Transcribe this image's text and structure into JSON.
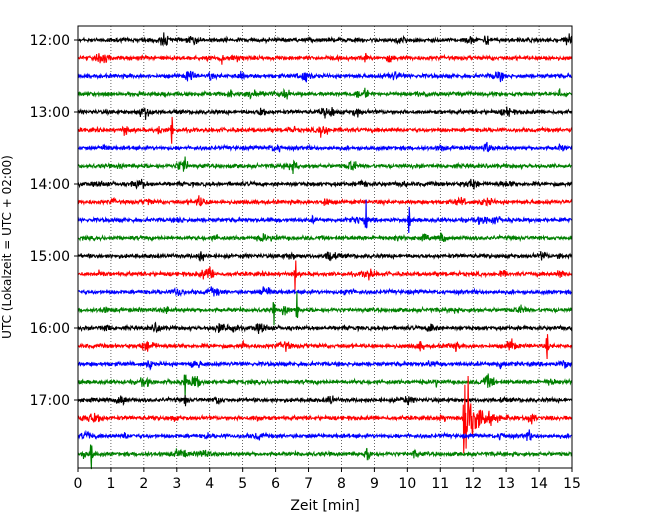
{
  "chart_data": {
    "type": "line",
    "title": "",
    "xlabel": "Zeit  [min]",
    "ylabel": "UTC (Lokalzeit = UTC + 02:00)",
    "xlim": [
      0,
      15
    ],
    "x_ticks": [
      "0",
      "1",
      "2",
      "3",
      "4",
      "5",
      "6",
      "7",
      "8",
      "9",
      "10",
      "11",
      "12",
      "13",
      "14",
      "15"
    ],
    "y_ticks": [
      "12:00",
      "13:00",
      "14:00",
      "15:00",
      "16:00",
      "17:00"
    ],
    "trace_start": "12:00",
    "trace_interval_min": 15,
    "trace_count": 24,
    "grid": "vertical-dotted",
    "legend": "none",
    "series_colors": [
      "#000000",
      "#ff0000",
      "#0000ff",
      "#008000"
    ],
    "events": [
      {
        "trace_time": "12:45",
        "minute": 6.3,
        "type": "noise-burst"
      },
      {
        "trace_time": "13:15",
        "minute": 2.85,
        "type": "spike"
      },
      {
        "trace_time": "14:30",
        "minute": 8.75,
        "type": "spike"
      },
      {
        "trace_time": "14:30",
        "minute": 10.05,
        "type": "spike"
      },
      {
        "trace_time": "15:15",
        "minute": 6.6,
        "type": "spike"
      },
      {
        "trace_time": "15:45",
        "minute": 5.95,
        "type": "spike"
      },
      {
        "trace_time": "15:45",
        "minute": 6.65,
        "type": "spike"
      },
      {
        "trace_time": "16:15",
        "minute": 14.25,
        "type": "spike"
      },
      {
        "trace_time": "16:45",
        "minute": 3.25,
        "type": "spike"
      },
      {
        "trace_time": "17:15",
        "minute": 11.7,
        "type": "earthquake"
      },
      {
        "trace_time": "17:45",
        "minute": 0.4,
        "type": "spike"
      }
    ]
  }
}
